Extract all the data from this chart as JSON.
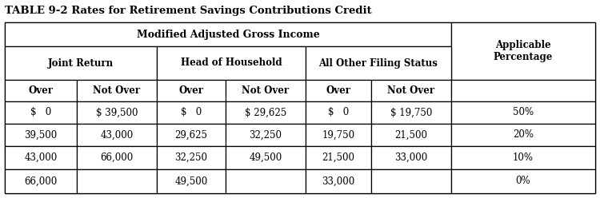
{
  "title": "TABLE 9-2 Rates for Retirement Savings Contributions Credit",
  "title_fontsize": 9.5,
  "bg_color": "#ffffff",
  "font_color": "#000000",
  "data_rows": [
    [
      "$   0",
      "$ 39,500",
      "$   0",
      "$ 29,625",
      "$   0",
      "$ 19,750",
      "50%"
    ],
    [
      "39,500",
      "43,000",
      "29,625",
      "32,250",
      "19,750",
      "21,500",
      "20%"
    ],
    [
      "43,000",
      "66,000",
      "32,250",
      "49,500",
      "21,500",
      "33,000",
      "10%"
    ],
    [
      "66,000",
      "",
      "49,500",
      "",
      "33,000",
      "",
      "0%"
    ]
  ],
  "figsize": [
    7.5,
    2.48
  ],
  "dpi": 100
}
